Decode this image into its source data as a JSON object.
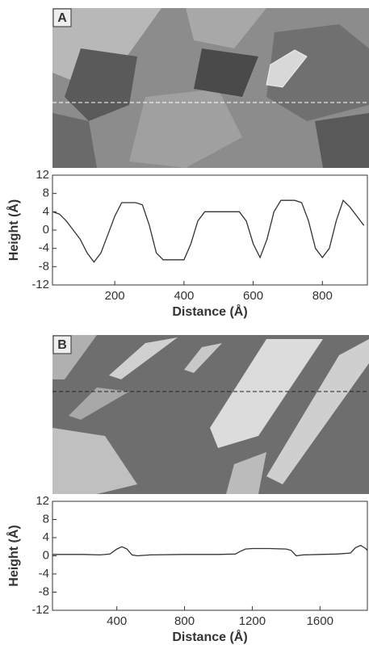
{
  "chart_data": [
    {
      "type": "line",
      "panel_label": "A",
      "xlabel": "Distance (Å)",
      "ylabel": "Height (Å)",
      "x": [
        20,
        40,
        60,
        80,
        100,
        120,
        140,
        160,
        180,
        200,
        220,
        240,
        260,
        280,
        300,
        320,
        340,
        360,
        380,
        400,
        420,
        440,
        460,
        480,
        500,
        520,
        540,
        560,
        580,
        600,
        620,
        640,
        660,
        680,
        700,
        720,
        740,
        760,
        780,
        800,
        820,
        840,
        860,
        880,
        900,
        920
      ],
      "values": [
        4,
        3.5,
        2,
        0,
        -2,
        -5,
        -7,
        -5,
        -1,
        3,
        6,
        6,
        6,
        5.5,
        1,
        -5,
        -6.5,
        -6.5,
        -6.5,
        -6.5,
        -3,
        2,
        4,
        4,
        4,
        4,
        4,
        4,
        2,
        -3,
        -6,
        -2,
        4,
        6.5,
        6.5,
        6.5,
        6,
        2,
        -4,
        -6,
        -4,
        2,
        6.5,
        5,
        3,
        1
      ],
      "color": "#333333",
      "xlim": [
        20,
        930
      ],
      "xticks": [
        200,
        400,
        600,
        800
      ],
      "ylim": [
        -12,
        12
      ],
      "yticks": [
        -12,
        -8,
        -4,
        0,
        4,
        8,
        12
      ]
    },
    {
      "type": "line",
      "panel_label": "B",
      "xlabel": "Distance (Å)",
      "ylabel": "Height (Å)",
      "x": [
        20,
        100,
        200,
        300,
        360,
        400,
        430,
        460,
        490,
        520,
        600,
        800,
        1000,
        1100,
        1130,
        1160,
        1200,
        1300,
        1400,
        1430,
        1460,
        1500,
        1600,
        1700,
        1780,
        1810,
        1840,
        1870,
        1880
      ],
      "values": [
        0.3,
        0.3,
        0.3,
        0.2,
        0.4,
        1.5,
        2,
        1.5,
        0.2,
        0,
        0.2,
        0.3,
        0.3,
        0.4,
        1,
        1.5,
        1.6,
        1.6,
        1.5,
        1.2,
        0,
        0.2,
        0.3,
        0.4,
        0.6,
        1.8,
        2.3,
        1.6,
        1.2
      ],
      "color": "#333333",
      "xlim": [
        20,
        1880
      ],
      "xticks": [
        400,
        800,
        1200,
        1600
      ],
      "ylim": [
        -12,
        12
      ],
      "yticks": [
        -12,
        -8,
        -4,
        0,
        4,
        8,
        12
      ]
    }
  ]
}
